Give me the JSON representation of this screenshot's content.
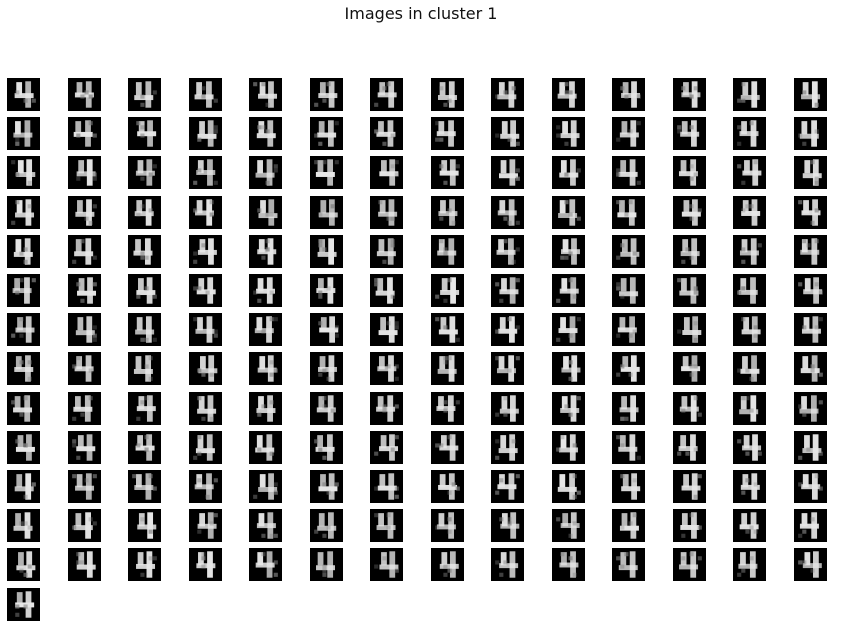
{
  "title": "Images in cluster 1",
  "grid": {
    "columns": 14,
    "rows": 14,
    "count": 183
  },
  "thumbnail": {
    "background": "#000000",
    "foreground": "#e6e6e6"
  }
}
